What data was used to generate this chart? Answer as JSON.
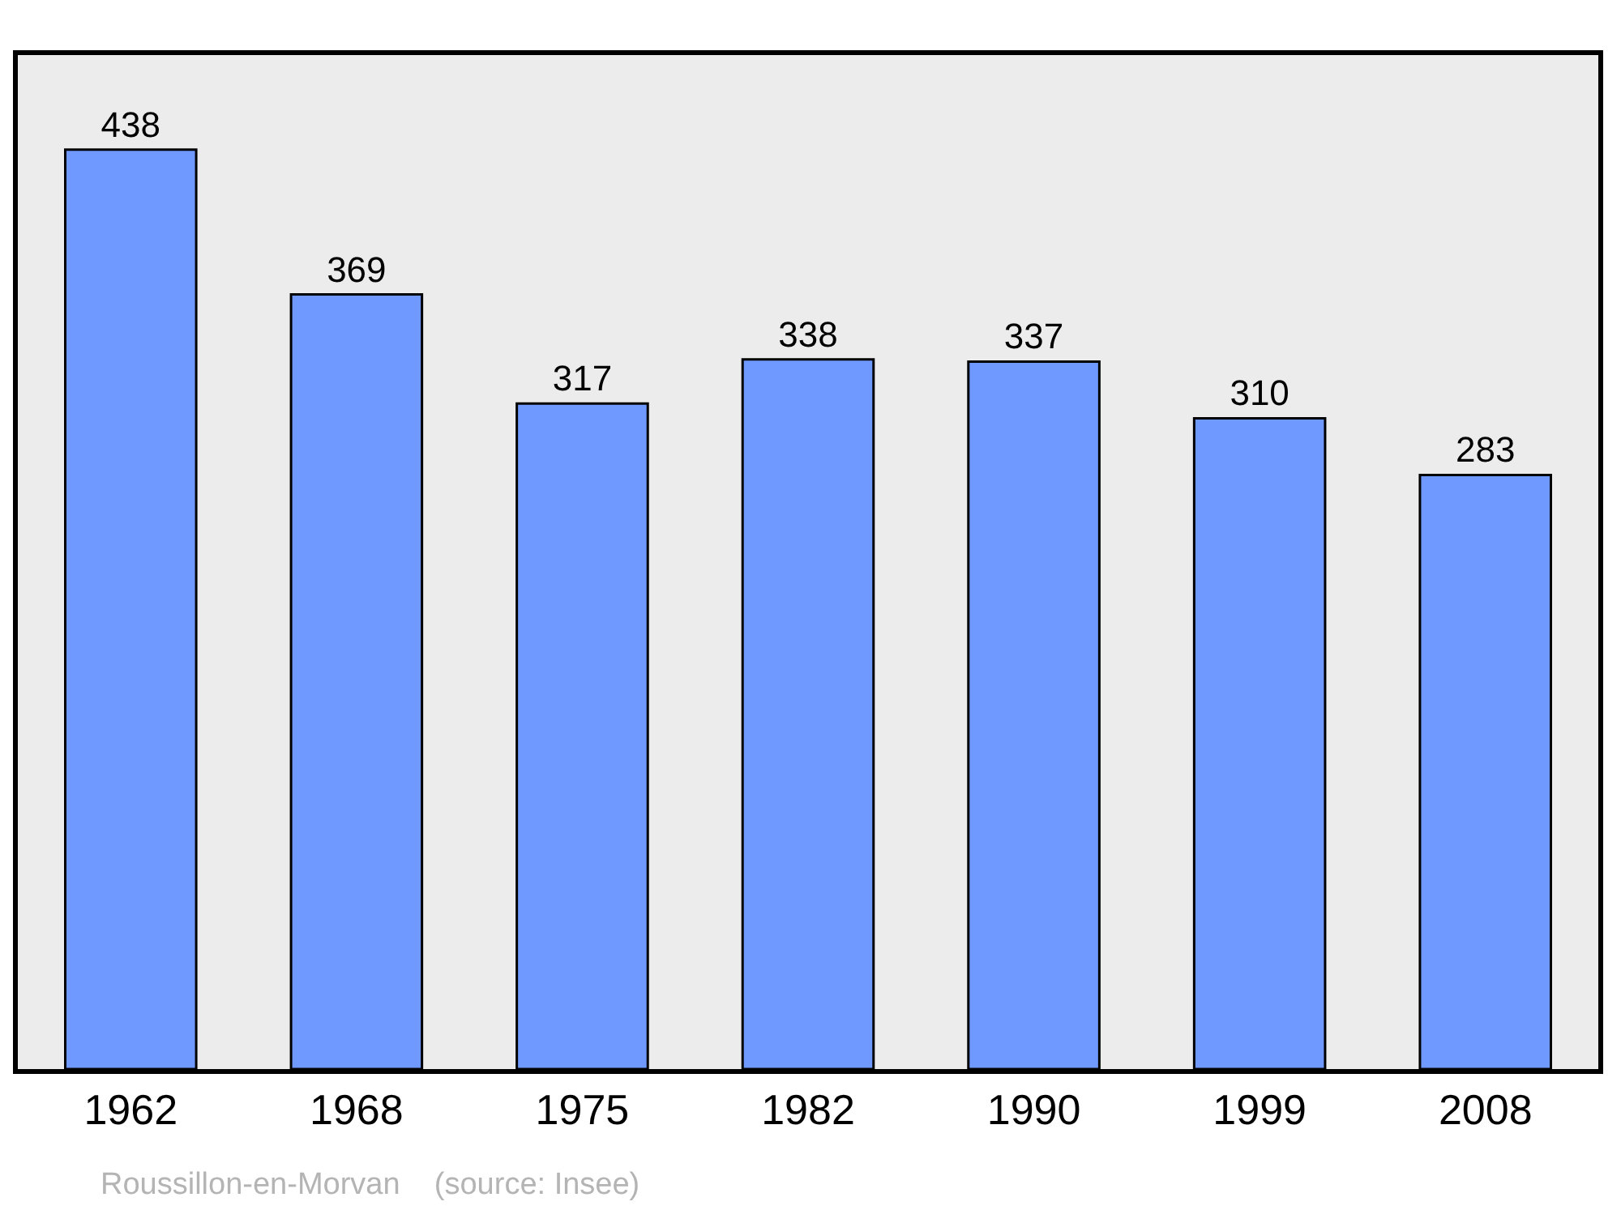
{
  "chart_data": {
    "type": "bar",
    "categories": [
      "1962",
      "1968",
      "1975",
      "1982",
      "1990",
      "1999",
      "2008"
    ],
    "values": [
      438,
      369,
      317,
      338,
      337,
      310,
      283
    ],
    "color": "#7099ff",
    "data_labels": true,
    "ylim": [
      0,
      483
    ],
    "tick_labels": "x",
    "grid": false,
    "legend": false,
    "annotations": [
      "Roussillon-en-Morvan    (source: Insee)"
    ]
  }
}
